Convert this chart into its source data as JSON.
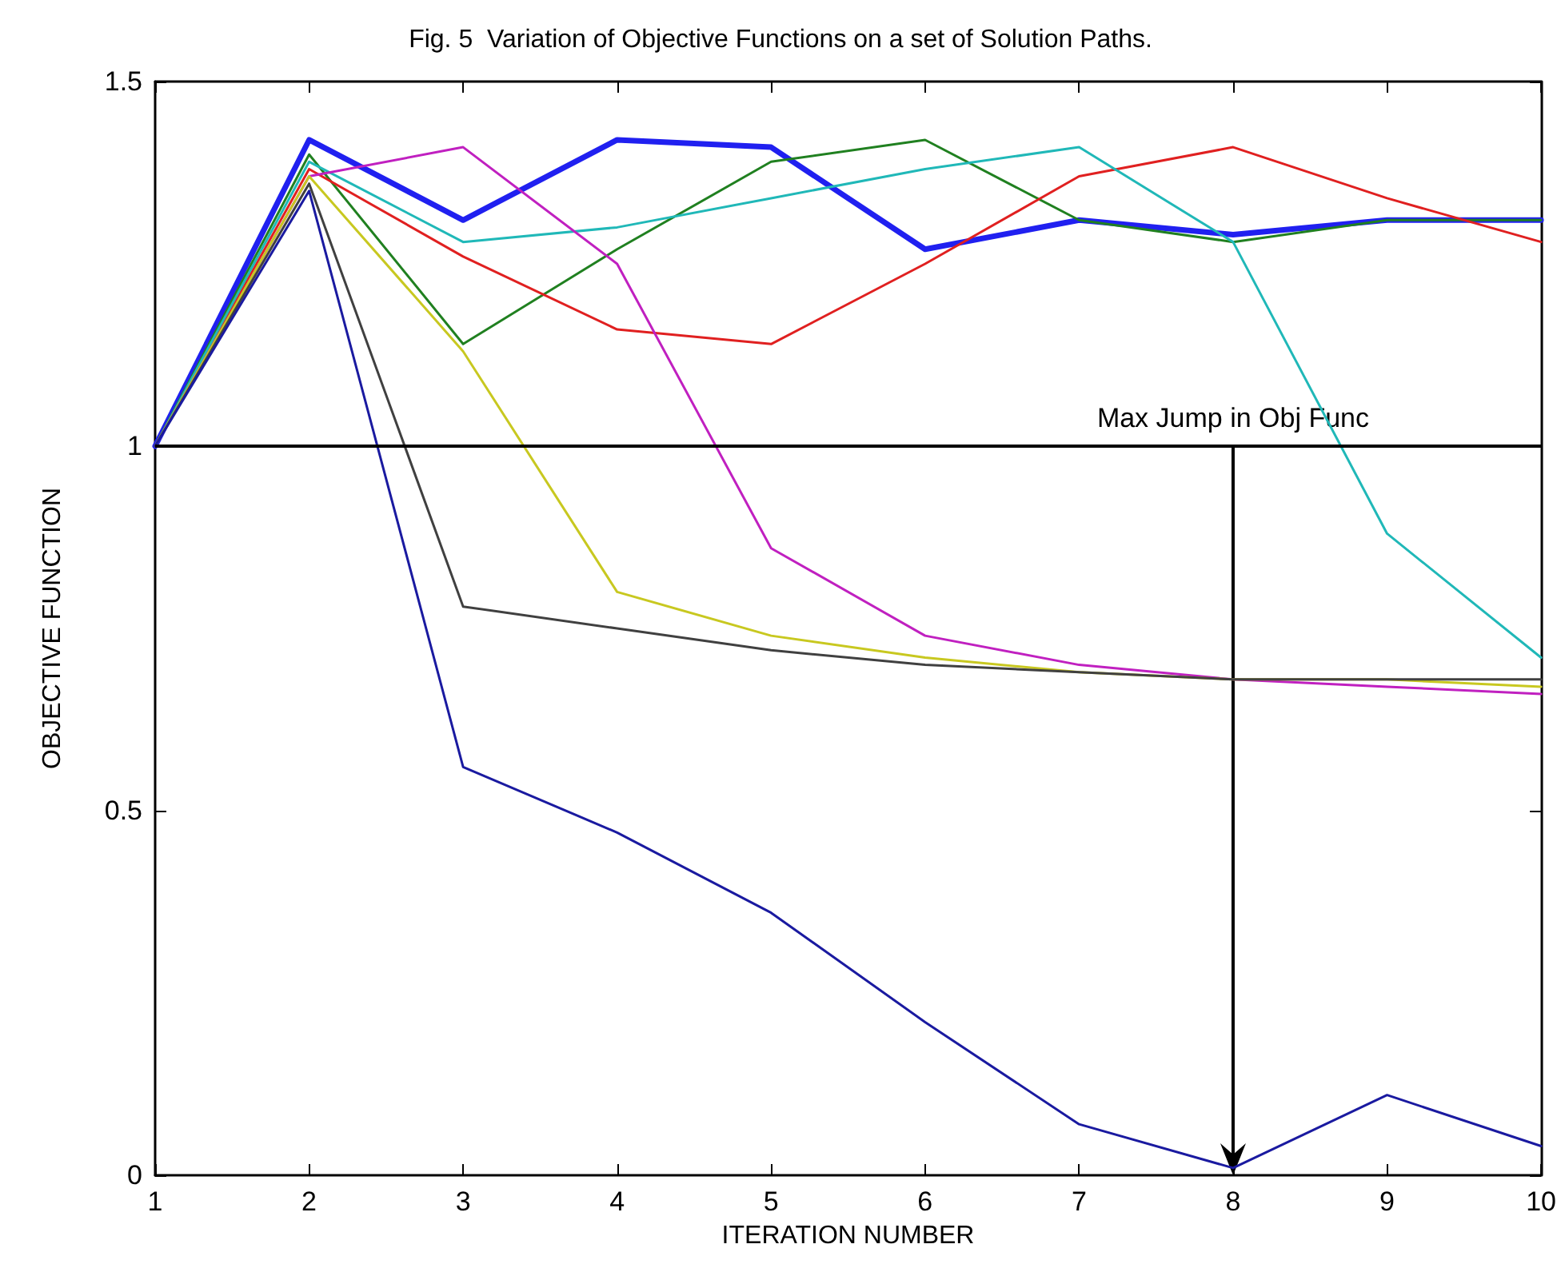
{
  "chart_data": {
    "type": "line",
    "title": "Fig. 5  Variation of Objective Functions on a set of Solution Paths.",
    "xlabel": "ITERATION NUMBER",
    "ylabel": "OBJECTIVE FUNCTION",
    "x": [
      1,
      2,
      3,
      4,
      5,
      6,
      7,
      8,
      9,
      10
    ],
    "series": [
      {
        "color": "#2020f0",
        "values": [
          1,
          1.42,
          1.31,
          1.42,
          1.41,
          1.27,
          1.31,
          1.29,
          1.31,
          1.31
        ]
      },
      {
        "color": "#208020",
        "values": [
          1,
          1.4,
          1.14,
          1.27,
          1.39,
          1.42,
          1.31,
          1.28,
          1.31,
          1.31
        ]
      },
      {
        "color": "#e02020",
        "values": [
          1,
          1.38,
          1.26,
          1.16,
          1.14,
          1.25,
          1.37,
          1.41,
          1.34,
          1.28
        ]
      },
      {
        "color": "#20b8b8",
        "values": [
          1,
          1.39,
          1.28,
          1.3,
          1.34,
          1.38,
          1.41,
          1.28,
          0.88,
          0.71
        ]
      },
      {
        "color": "#c020c0",
        "values": [
          1,
          1.37,
          1.41,
          1.25,
          0.86,
          0.74,
          0.7,
          0.68,
          0.67,
          0.66
        ]
      },
      {
        "color": "#c8c820",
        "values": [
          1,
          1.37,
          1.13,
          0.8,
          0.74,
          0.71,
          0.69,
          0.68,
          0.68,
          0.67
        ]
      },
      {
        "color": "#404040",
        "values": [
          1,
          1.36,
          0.78,
          0.75,
          0.72,
          0.7,
          0.69,
          0.68,
          0.68,
          0.68
        ]
      },
      {
        "color": "#1a1aa0",
        "values": [
          1,
          1.35,
          0.56,
          0.47,
          0.36,
          0.21,
          0.07,
          0.01,
          0.11,
          0.04
        ]
      }
    ],
    "xlim": [
      1,
      10
    ],
    "xticks": [
      1,
      2,
      3,
      4,
      5,
      6,
      7,
      8,
      9,
      10
    ],
    "ylim": [
      0,
      1.5
    ],
    "yticks": [
      0,
      0.5,
      1,
      1.5
    ],
    "ref_lines": [
      {
        "axis": "y",
        "value": 1,
        "label": null,
        "color": "#000000"
      }
    ],
    "annotations": [
      {
        "text": "Max Jump in Obj Func",
        "x": 8,
        "y": 1
      }
    ],
    "marker": "none",
    "line_style": "solid"
  }
}
